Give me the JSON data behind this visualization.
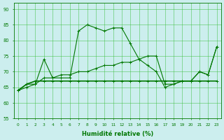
{
  "x": [
    0,
    1,
    2,
    3,
    4,
    5,
    6,
    7,
    8,
    9,
    10,
    11,
    12,
    13,
    14,
    15,
    16,
    17,
    18,
    19,
    20,
    21,
    22,
    23
  ],
  "line_main": [
    64,
    66,
    66,
    74,
    68,
    68,
    68,
    83,
    85,
    84,
    83,
    84,
    84,
    79,
    74,
    72,
    70,
    65,
    66,
    67,
    67,
    70,
    69,
    78
  ],
  "line_flat": [
    64,
    66,
    67,
    67,
    67,
    67,
    67,
    67,
    67,
    67,
    67,
    67,
    67,
    67,
    67,
    67,
    67,
    67,
    67,
    67,
    67,
    67,
    67,
    67
  ],
  "line_ramp": [
    64,
    65,
    66,
    68,
    68,
    69,
    69,
    70,
    70,
    71,
    72,
    72,
    73,
    73,
    74,
    75,
    75,
    66,
    66,
    67,
    67,
    70,
    69,
    78
  ],
  "line_color": "#007700",
  "bg_color": "#cceeee",
  "grid_color": "#33bb33",
  "xlabel": "Humidité relative (%)",
  "ylim": [
    55,
    92
  ],
  "yticks": [
    55,
    60,
    65,
    70,
    75,
    80,
    85,
    90
  ],
  "xlim": [
    -0.5,
    23.5
  ]
}
